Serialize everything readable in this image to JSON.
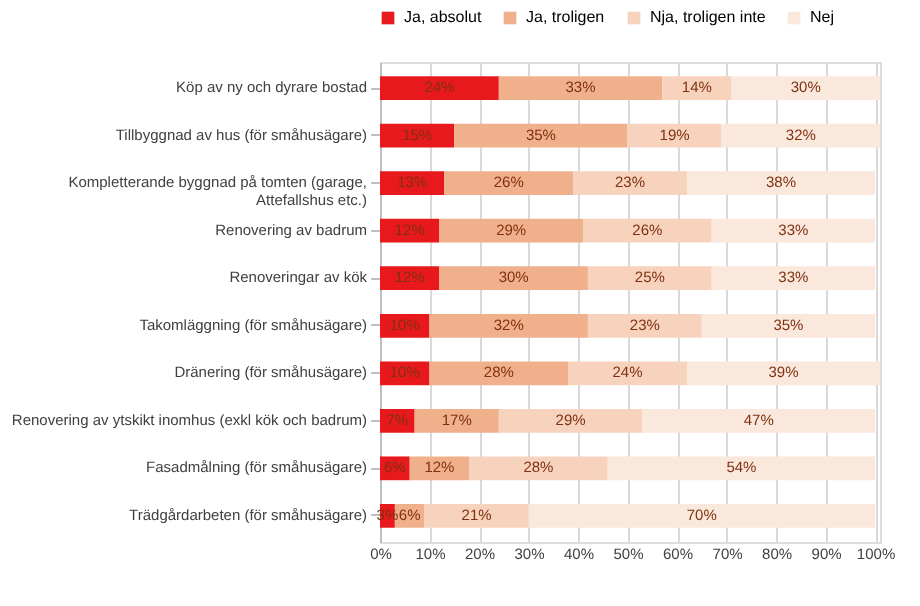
{
  "chart_data": {
    "type": "bar",
    "orientation": "horizontal",
    "stacked": true,
    "grid": "x",
    "legend": "top",
    "categories": [
      "Köp av ny och dyrare bostad",
      "Tillbyggnad av hus (för småhusägare)",
      "Kompletterande byggnad på tomten (garage, Attefallshus etc.)",
      "Renovering av badrum",
      "Renoveringar av kök",
      "Takomläggning (för småhusägare)",
      "Dränering (för småhusägare)",
      "Renovering av ytskikt inomhus (exkl kök och badrum)",
      "Fasadmålning (för småhusägare)",
      "Trädgårdarbeten (för småhusägare)"
    ],
    "series": [
      {
        "name": "Ja, absolut",
        "color": "#e8191c",
        "values": [
          24,
          15,
          13,
          12,
          12,
          10,
          10,
          7,
          6,
          3
        ],
        "value_labels": [
          "24%",
          "15%",
          "13%",
          "12%",
          "12%",
          "10%",
          "10%",
          "7%",
          "6%",
          "3%"
        ]
      },
      {
        "name": "Ja, troligen",
        "color": "#f1b08c",
        "values": [
          33,
          35,
          26,
          29,
          30,
          32,
          28,
          17,
          12,
          6
        ],
        "value_labels": [
          "33%",
          "35%",
          "26%",
          "29%",
          "30%",
          "32%",
          "28%",
          "17%",
          "12%",
          "6%"
        ]
      },
      {
        "name": "Nja, troligen inte",
        "color": "#f7d2bd",
        "values": [
          14,
          19,
          23,
          26,
          25,
          23,
          24,
          29,
          28,
          21
        ],
        "value_labels": [
          "14%",
          "19%",
          "23%",
          "26%",
          "25%",
          "23%",
          "24%",
          "29%",
          "28%",
          "21%"
        ]
      },
      {
        "name": "Nej",
        "color": "#fbe8dc",
        "values": [
          30,
          32,
          38,
          33,
          33,
          35,
          39,
          47,
          54,
          70
        ],
        "value_labels": [
          "30%",
          "32%",
          "38%",
          "33%",
          "33%",
          "35%",
          "39%",
          "47%",
          "54%",
          "70%"
        ]
      }
    ],
    "xlim": [
      0,
      101
    ],
    "xticks": [
      {
        "value": 0,
        "label": "0%"
      },
      {
        "value": 10,
        "label": "10%"
      },
      {
        "value": 20,
        "label": "20%"
      },
      {
        "value": 30,
        "label": "30%"
      },
      {
        "value": 40,
        "label": "40%"
      },
      {
        "value": 50,
        "label": "50%"
      },
      {
        "value": 60,
        "label": "60%"
      },
      {
        "value": 70,
        "label": "70%"
      },
      {
        "value": 80,
        "label": "80%"
      },
      {
        "value": 90,
        "label": "90%"
      },
      {
        "value": 100,
        "label": "100%"
      }
    ]
  }
}
